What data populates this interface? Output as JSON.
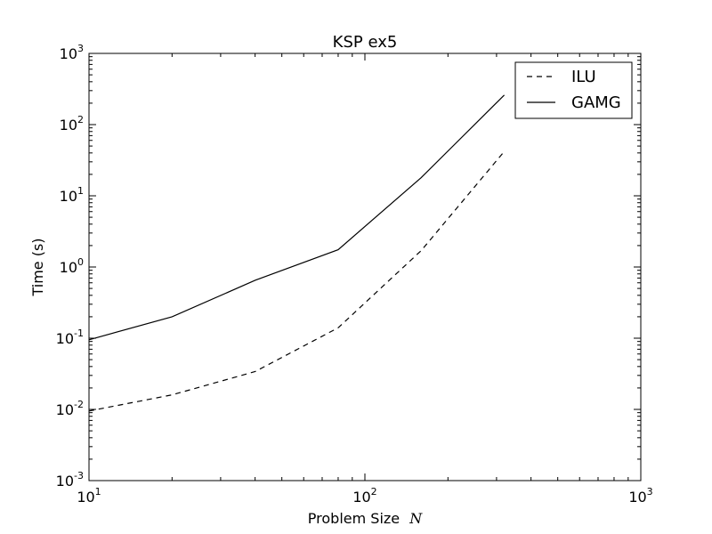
{
  "chart_data": {
    "type": "line",
    "title": "KSP ex5",
    "xlabel": "Problem Size",
    "xlabel_symbol": "N",
    "ylabel": "Time (s)",
    "xscale": "log",
    "yscale": "log",
    "xlim": [
      10,
      1000
    ],
    "ylim": [
      0.001,
      1000
    ],
    "x_ticks": [
      {
        "value": 10,
        "base": "10",
        "exp": "1"
      },
      {
        "value": 100,
        "base": "10",
        "exp": "2"
      },
      {
        "value": 1000,
        "base": "10",
        "exp": "3"
      }
    ],
    "y_ticks": [
      {
        "value": 0.001,
        "base": "10",
        "exp": "-3"
      },
      {
        "value": 0.01,
        "base": "10",
        "exp": "-2"
      },
      {
        "value": 0.1,
        "base": "10",
        "exp": "-1"
      },
      {
        "value": 1,
        "base": "10",
        "exp": "0"
      },
      {
        "value": 10,
        "base": "10",
        "exp": "1"
      },
      {
        "value": 100,
        "base": "10",
        "exp": "2"
      },
      {
        "value": 1000,
        "base": "10",
        "exp": "3"
      }
    ],
    "grid": false,
    "legend_position": "top-right",
    "series": [
      {
        "name": "ILU",
        "style": "dashed",
        "color": "#000000",
        "x": [
          10,
          20,
          40,
          80,
          160,
          320
        ],
        "y": [
          0.0095,
          0.016,
          0.034,
          0.14,
          1.7,
          42
        ]
      },
      {
        "name": "GAMG",
        "style": "solid",
        "color": "#000000",
        "x": [
          10,
          20,
          40,
          80,
          160,
          320
        ],
        "y": [
          0.095,
          0.2,
          0.65,
          1.75,
          18,
          260
        ]
      }
    ]
  }
}
